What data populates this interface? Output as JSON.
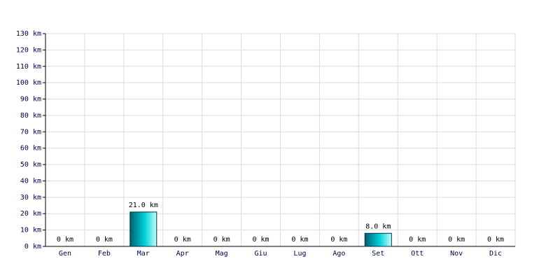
{
  "chart_data": {
    "type": "bar",
    "categories": [
      "Gen",
      "Feb",
      "Mar",
      "Apr",
      "Mag",
      "Giu",
      "Lug",
      "Ago",
      "Set",
      "Ott",
      "Nov",
      "Dic"
    ],
    "values": [
      0,
      0,
      21,
      0,
      0,
      0,
      0,
      0,
      8,
      0,
      0,
      0
    ],
    "value_labels": [
      "0 km",
      "0 km",
      "21.0 km",
      "0 km",
      "0 km",
      "0 km",
      "0 km",
      "0 km",
      "8.0 km",
      "0 km",
      "0 km",
      "0 km"
    ],
    "color": "#00d0d8",
    "ylim": [
      0,
      130
    ],
    "yticks": [
      {
        "value": 0,
        "label": "0 km"
      },
      {
        "value": 10,
        "label": "10 km"
      },
      {
        "value": 20,
        "label": "20 km"
      },
      {
        "value": 30,
        "label": "30 km"
      },
      {
        "value": 40,
        "label": "40 km"
      },
      {
        "value": 50,
        "label": "50 km"
      },
      {
        "value": 60,
        "label": "60 km"
      },
      {
        "value": 70,
        "label": "70 km"
      },
      {
        "value": 80,
        "label": "80 km"
      },
      {
        "value": 90,
        "label": "90 km"
      },
      {
        "value": 100,
        "label": "100 km"
      },
      {
        "value": 110,
        "label": "110 km"
      },
      {
        "value": 120,
        "label": "120 km"
      },
      {
        "value": 130,
        "label": "130 km"
      }
    ],
    "grid": true
  }
}
